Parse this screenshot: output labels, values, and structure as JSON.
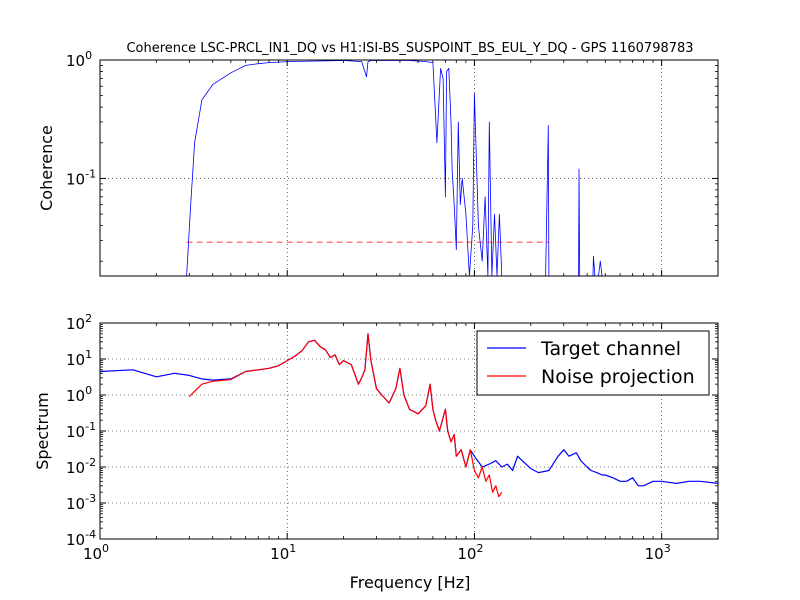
{
  "chart_data": [
    {
      "type": "line",
      "title": "Coherence LSC-PRCL_IN1_DQ vs H1:ISI-BS_SUSPOINT_BS_EUL_Y_DQ - GPS 1160798783",
      "xlabel": "",
      "ylabel": "Coherence",
      "xscale": "log",
      "yscale": "log",
      "xlim": [
        1,
        2000
      ],
      "ylim": [
        0.015,
        1
      ],
      "grid": true,
      "x_ticks": [
        {
          "v": 1,
          "label": ""
        },
        {
          "v": 10,
          "label": ""
        },
        {
          "v": 100,
          "label": ""
        },
        {
          "v": 1000,
          "label": ""
        }
      ],
      "y_ticks": [
        {
          "v": 0.1,
          "b": "10",
          "e": "-1"
        },
        {
          "v": 1,
          "b": "10",
          "e": "0"
        }
      ],
      "series": [
        {
          "color": "#0000ff",
          "x": [
            2.9,
            3.05,
            3.2,
            3.5,
            4.0,
            4.5,
            5.0,
            6.0,
            7.0,
            8.0,
            10,
            15,
            20,
            25,
            26.5,
            27,
            28,
            35,
            45,
            55,
            60,
            63,
            66,
            68,
            70,
            71,
            73,
            75,
            76,
            78,
            80,
            82,
            84,
            86,
            90,
            94,
            98,
            100,
            105,
            110,
            114,
            118,
            120,
            124,
            128,
            132,
            136,
            140,
            150,
            160,
            180,
            200,
            220,
            240,
            248,
            250,
            252,
            270,
            300,
            330,
            360,
            362,
            365,
            400,
            430,
            432,
            440,
            460,
            470,
            480
          ],
          "y": [
            0.015,
            0.06,
            0.2,
            0.46,
            0.62,
            0.7,
            0.78,
            0.9,
            0.93,
            0.95,
            0.97,
            0.98,
            0.99,
            0.97,
            0.72,
            0.97,
            0.99,
            0.99,
            0.99,
            0.97,
            0.95,
            0.2,
            0.85,
            0.7,
            0.07,
            0.8,
            0.85,
            0.3,
            0.12,
            0.06,
            0.025,
            0.3,
            0.06,
            0.1,
            0.05,
            0.015,
            0.04,
            0.52,
            0.04,
            0.02,
            0.07,
            0.015,
            0.3,
            0.015,
            0.05,
            0.015,
            0.05,
            0.015,
            0.015,
            0.015,
            0.015,
            0.015,
            0.015,
            0.015,
            0.28,
            0.015,
            0.015,
            0.015,
            0.015,
            0.015,
            0.015,
            0.12,
            0.015,
            0.015,
            0.015,
            0.022,
            0.015,
            0.015,
            0.02,
            0.015
          ]
        },
        {
          "color": "#ff0000",
          "dashed": true,
          "x": [
            2.9,
            250
          ],
          "y": [
            0.029,
            0.029
          ]
        }
      ]
    },
    {
      "type": "line",
      "title": "",
      "xlabel": "Frequency [Hz]",
      "ylabel": "Spectrum",
      "xscale": "log",
      "yscale": "log",
      "xlim": [
        1,
        2000
      ],
      "ylim": [
        0.0001,
        100
      ],
      "grid": true,
      "legend_position": "top-right",
      "x_ticks": [
        {
          "v": 1,
          "b": "10",
          "e": "0"
        },
        {
          "v": 10,
          "b": "10",
          "e": "1"
        },
        {
          "v": 100,
          "b": "10",
          "e": "2"
        },
        {
          "v": 1000,
          "b": "10",
          "e": "3"
        }
      ],
      "y_ticks": [
        {
          "v": 0.0001,
          "b": "10",
          "e": "-4"
        },
        {
          "v": 0.001,
          "b": "10",
          "e": "-3"
        },
        {
          "v": 0.01,
          "b": "10",
          "e": "-2"
        },
        {
          "v": 0.1,
          "b": "10",
          "e": "-1"
        },
        {
          "v": 1,
          "b": "10",
          "e": "0"
        },
        {
          "v": 10,
          "b": "10",
          "e": "1"
        },
        {
          "v": 100,
          "b": "10",
          "e": "2"
        }
      ],
      "series": [
        {
          "name": "Target channel",
          "color": "#0000ff",
          "x": [
            1.0,
            1.5,
            2.0,
            2.5,
            3.0,
            3.5,
            4.0,
            5.0,
            6.0,
            7.0,
            8.0,
            9.0,
            10,
            11,
            12,
            13,
            14,
            15,
            16,
            17,
            18,
            19,
            20,
            22,
            24,
            25,
            26,
            27,
            28,
            30,
            32,
            35,
            38,
            40,
            42,
            45,
            50,
            55,
            58,
            60,
            62,
            65,
            70,
            72,
            75,
            78,
            80,
            85,
            90,
            95,
            100,
            110,
            120,
            130,
            140,
            150,
            160,
            170,
            180,
            200,
            220,
            250,
            280,
            300,
            320,
            350,
            370,
            400,
            420,
            450,
            480,
            500,
            550,
            600,
            650,
            700,
            750,
            800,
            900,
            1000,
            1200,
            1400,
            1600,
            2000
          ],
          "y": [
            4.5,
            5.0,
            3.2,
            4.0,
            3.5,
            2.8,
            2.6,
            2.8,
            4.5,
            5.0,
            5.5,
            6.5,
            9.0,
            12,
            17,
            30,
            33,
            22,
            18,
            11,
            13,
            7,
            9,
            7,
            2.0,
            3.0,
            5.0,
            50,
            9.0,
            1.5,
            1.0,
            0.6,
            1.5,
            5.5,
            1.0,
            0.4,
            0.3,
            0.5,
            2.0,
            0.4,
            0.2,
            0.1,
            0.4,
            0.1,
            0.05,
            0.08,
            0.02,
            0.03,
            0.01,
            0.03,
            0.02,
            0.01,
            0.012,
            0.015,
            0.01,
            0.012,
            0.008,
            0.02,
            0.015,
            0.009,
            0.007,
            0.008,
            0.02,
            0.03,
            0.02,
            0.025,
            0.015,
            0.01,
            0.008,
            0.007,
            0.006,
            0.006,
            0.005,
            0.004,
            0.004,
            0.005,
            0.003,
            0.003,
            0.004,
            0.004,
            0.0035,
            0.004,
            0.004,
            0.0035
          ]
        },
        {
          "name": "Noise projection",
          "color": "#ff0000",
          "x": [
            3.0,
            3.5,
            4.0,
            5.0,
            6.0,
            7.0,
            8.0,
            9.0,
            10,
            11,
            12,
            13,
            14,
            15,
            16,
            17,
            18,
            19,
            20,
            22,
            24,
            25,
            26,
            27,
            28,
            30,
            32,
            35,
            38,
            40,
            42,
            45,
            50,
            55,
            58,
            60,
            62,
            65,
            70,
            72,
            75,
            78,
            80,
            85,
            90,
            95,
            100,
            105,
            110,
            115,
            120,
            125,
            130,
            135,
            140
          ],
          "y": [
            0.9,
            2.0,
            2.4,
            2.7,
            4.5,
            5.0,
            5.5,
            6.5,
            9.0,
            12,
            17,
            30,
            33,
            22,
            18,
            11,
            13,
            7,
            9,
            7,
            2.0,
            3.0,
            5.0,
            50,
            9.0,
            1.5,
            1.0,
            0.6,
            1.5,
            5.5,
            1.0,
            0.4,
            0.3,
            0.5,
            2.0,
            0.4,
            0.2,
            0.1,
            0.4,
            0.1,
            0.05,
            0.08,
            0.02,
            0.03,
            0.01,
            0.03,
            0.008,
            0.005,
            0.01,
            0.004,
            0.006,
            0.002,
            0.003,
            0.0015,
            0.002
          ]
        }
      ]
    }
  ]
}
